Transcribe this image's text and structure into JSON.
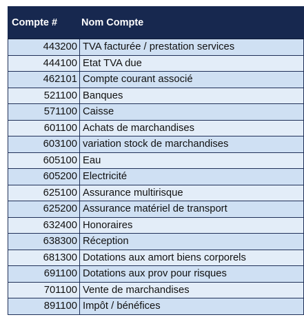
{
  "table": {
    "headers": {
      "num": "Compte #",
      "name": "Nom Compte"
    },
    "rows": [
      {
        "num": "443200",
        "name": "TVA facturée / prestation services"
      },
      {
        "num": "444100",
        "name": "Etat TVA due"
      },
      {
        "num": "462101",
        "name": "Compte courant associé"
      },
      {
        "num": "521100",
        "name": "Banques"
      },
      {
        "num": "571100",
        "name": "Caisse"
      },
      {
        "num": "601100",
        "name": "Achats de marchandises"
      },
      {
        "num": "603100",
        "name": "variation stock de marchandises"
      },
      {
        "num": "605100",
        "name": "Eau"
      },
      {
        "num": "605200",
        "name": "Electricité"
      },
      {
        "num": "625100",
        "name": "Assurance multirisque"
      },
      {
        "num": "625200",
        "name": "Assurance matériel de transport"
      },
      {
        "num": "632400",
        "name": "Honoraires"
      },
      {
        "num": "638300",
        "name": "Réception"
      },
      {
        "num": "681300",
        "name": "Dotations aux amort biens corporels"
      },
      {
        "num": "691100",
        "name": "Dotations aux prov pour risques"
      },
      {
        "num": "701100",
        "name": "Vente de marchandises"
      },
      {
        "num": "891100",
        "name": "Impôt / bénéfices"
      }
    ]
  }
}
